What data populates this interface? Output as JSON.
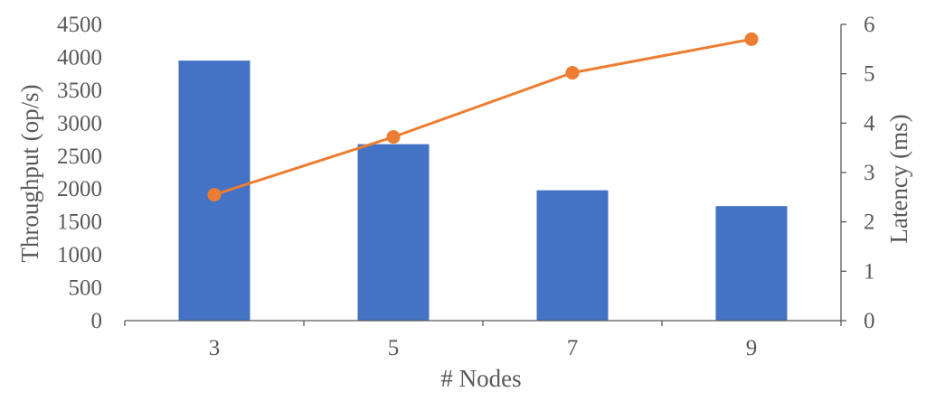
{
  "chart_data": {
    "type": "bar+line",
    "categories": [
      "3",
      "5",
      "7",
      "9"
    ],
    "series": [
      {
        "name": "Throughput",
        "type": "bar",
        "axis": "left",
        "values": [
          3950,
          2680,
          1980,
          1740
        ]
      },
      {
        "name": "Latency",
        "type": "line",
        "axis": "right",
        "values": [
          2.55,
          3.72,
          5.02,
          5.7
        ]
      }
    ],
    "xlabel": "# Nodes",
    "ylabel_left": "Throughput (op/s)",
    "ylabel_right": "Latency (ms)",
    "ylim_left": [
      0,
      4500
    ],
    "ylim_right": [
      0,
      6
    ],
    "yticks_left": [
      "0",
      "500",
      "1000",
      "1500",
      "2000",
      "2500",
      "3000",
      "3500",
      "4000",
      "4500"
    ],
    "yticks_right": [
      "0",
      "1",
      "2",
      "3",
      "4",
      "5",
      "6"
    ],
    "grid": false,
    "legend": "none",
    "colors": {
      "bar": "#4472C4",
      "line": "#ED7D31",
      "axis": "#595959",
      "text": "#595959"
    }
  }
}
